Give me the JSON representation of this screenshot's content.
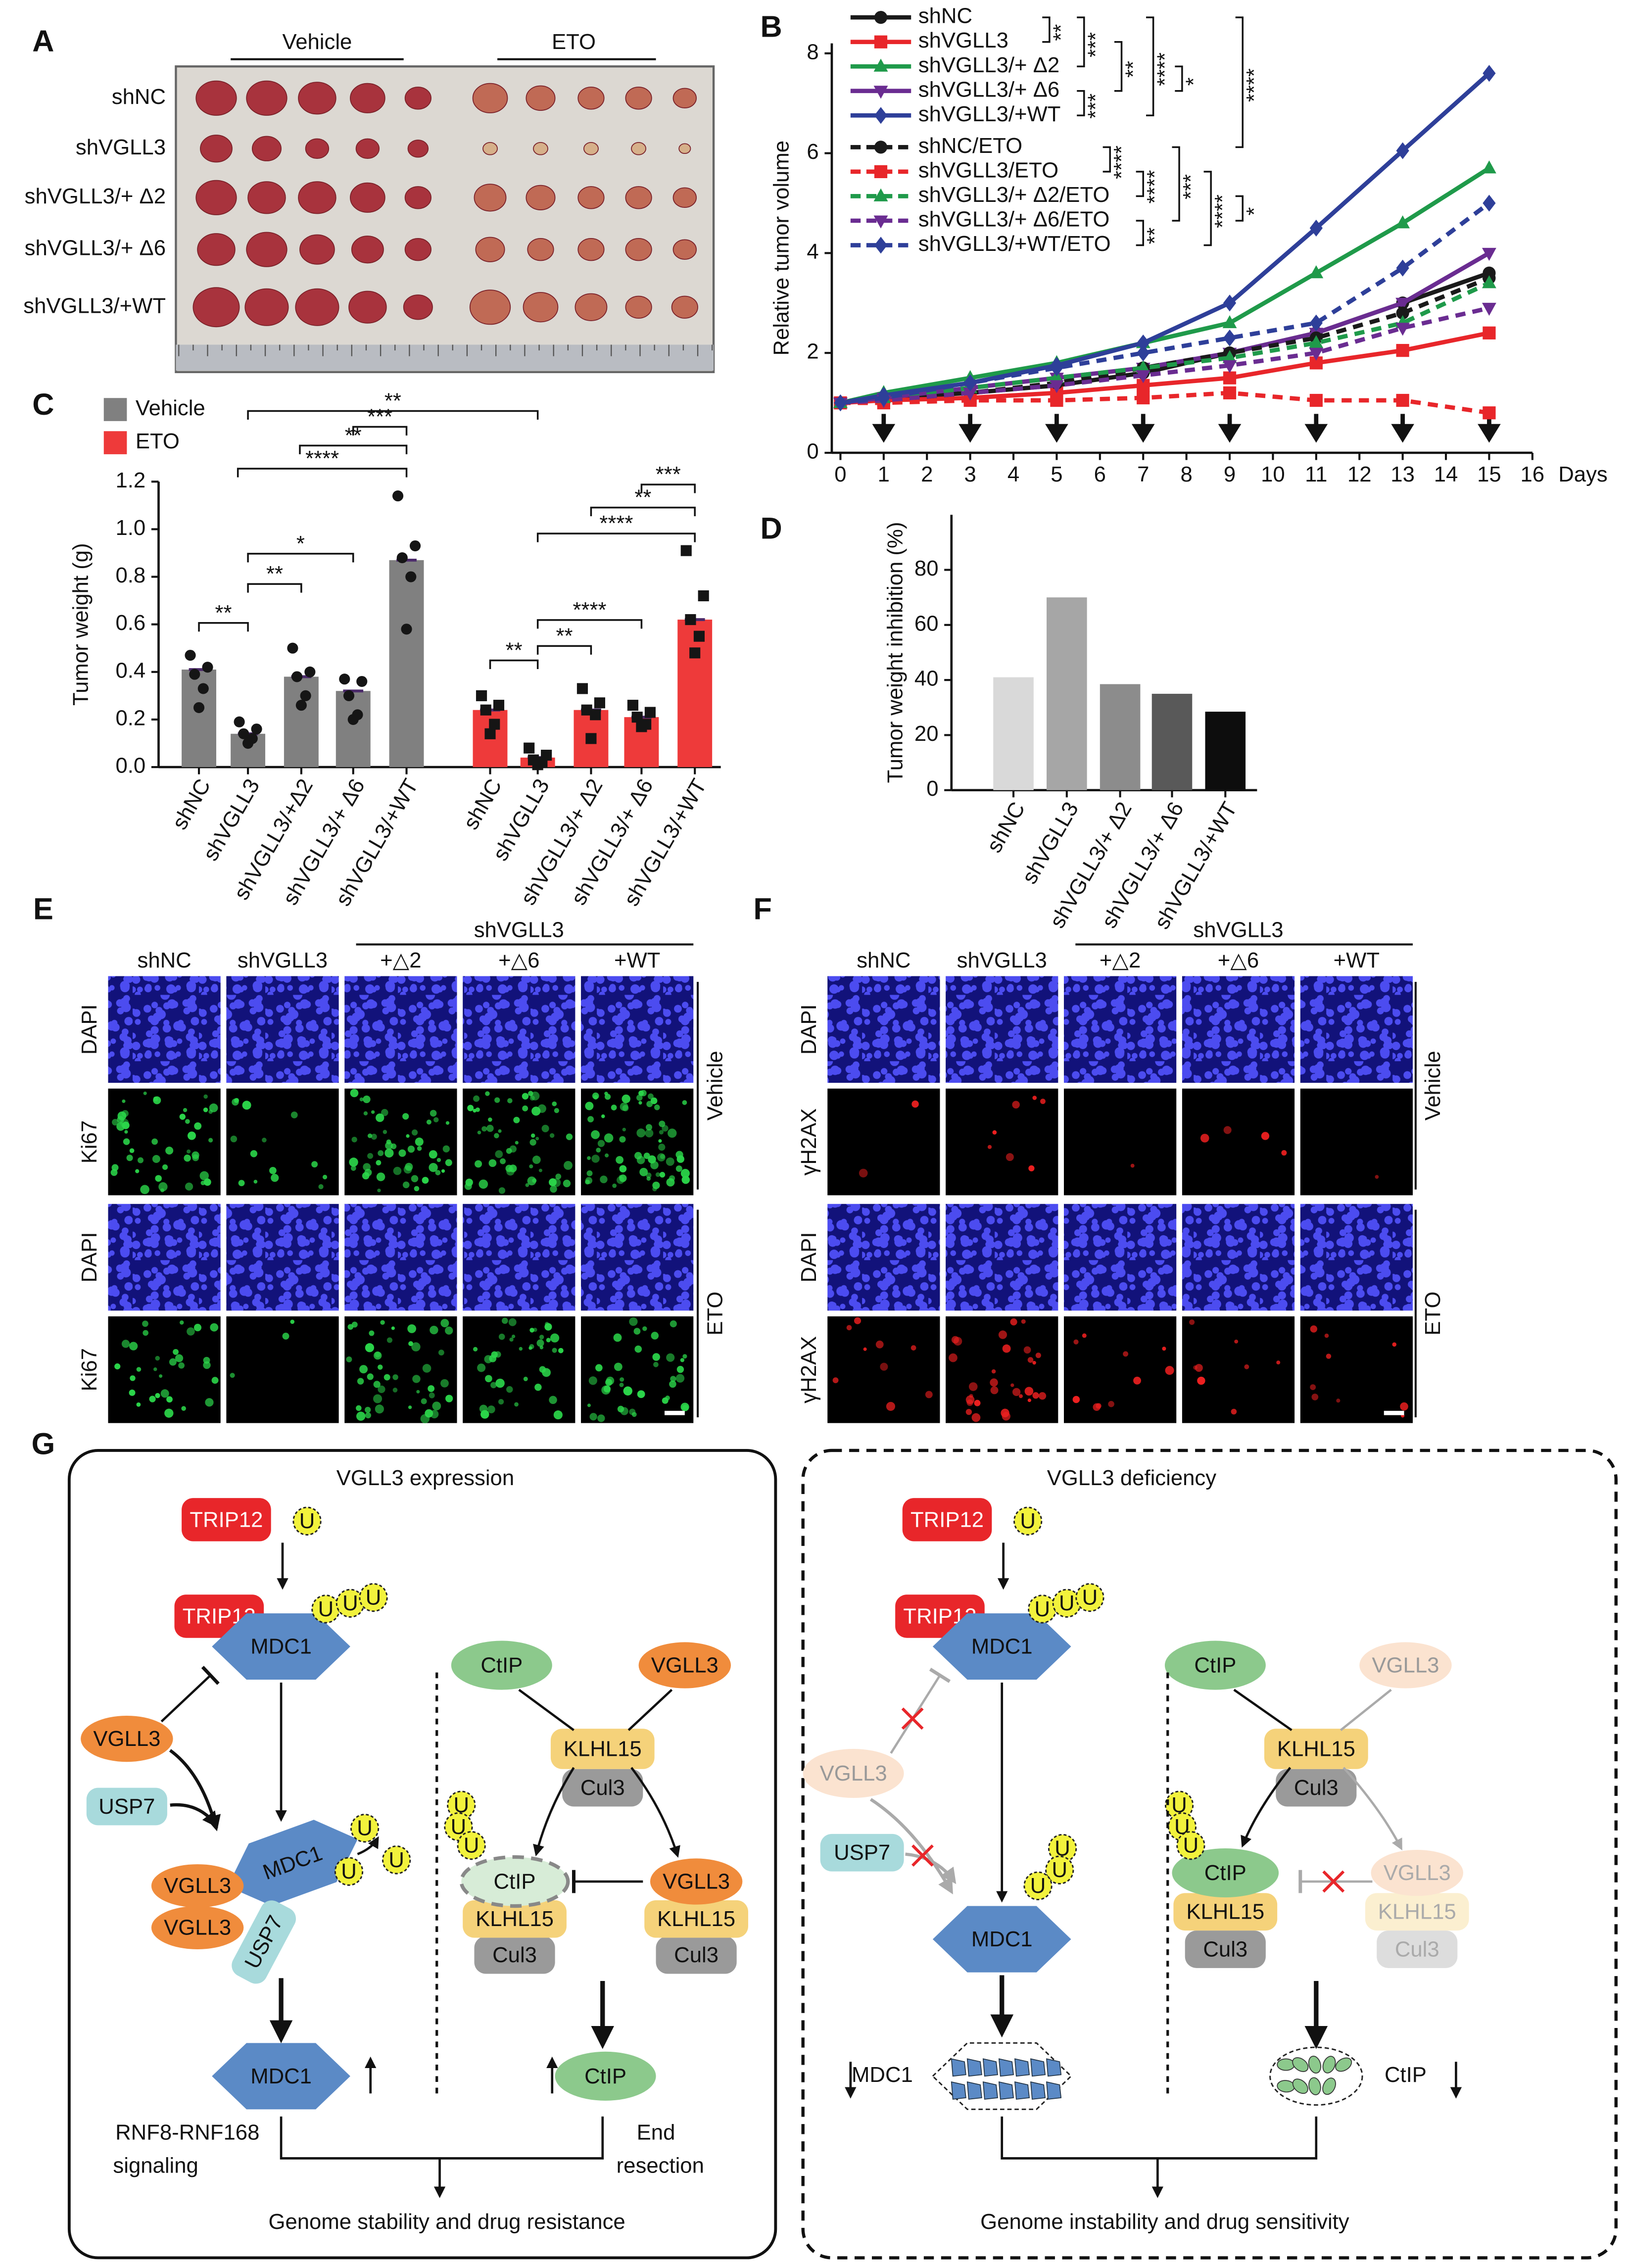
{
  "photo_A": {
    "label": "A",
    "groups": [
      "Vehicle",
      "ETO"
    ],
    "rows": [
      "shNC",
      "shVGLL3",
      "shVGLL3/+ Δ2",
      "shVGLL3/+ Δ6",
      "shVGLL3/+WT"
    ]
  },
  "chart_data": [
    {
      "label": "B",
      "type": "line",
      "y_label": "Relative tumor volume",
      "x_label": "Days",
      "x": [
        0,
        1,
        3,
        5,
        7,
        9,
        11,
        13,
        15
      ],
      "xlim": [
        0,
        16
      ],
      "xticks": [
        0,
        1,
        2,
        3,
        4,
        5,
        6,
        7,
        8,
        9,
        10,
        11,
        12,
        13,
        14,
        15,
        16
      ],
      "ylim": [
        0,
        8.2
      ],
      "yticks": [
        0,
        2,
        4,
        6,
        8
      ],
      "treatment_days": [
        1,
        3,
        5,
        7,
        9,
        11,
        13,
        15
      ],
      "series": [
        {
          "name": "shNC",
          "color": "#1a1a1a",
          "dash": false,
          "marker": "circle",
          "values": [
            1,
            1.1,
            1.2,
            1.35,
            1.6,
            2.0,
            2.4,
            3.0,
            3.6
          ]
        },
        {
          "name": "shVGLL3",
          "color": "#e8262a",
          "dash": false,
          "marker": "square",
          "values": [
            1,
            1.05,
            1.1,
            1.2,
            1.35,
            1.5,
            1.8,
            2.05,
            2.4
          ]
        },
        {
          "name": "shVGLL3/+ Δ2",
          "color": "#1f9a4a",
          "dash": false,
          "marker": "triangle-up",
          "values": [
            1,
            1.2,
            1.5,
            1.8,
            2.2,
            2.6,
            3.6,
            4.6,
            5.7
          ]
        },
        {
          "name": "shVGLL3/+ Δ6",
          "color": "#6a2c91",
          "dash": false,
          "marker": "triangle-down",
          "values": [
            1,
            1.1,
            1.3,
            1.5,
            1.7,
            2.0,
            2.4,
            3.0,
            4.0
          ]
        },
        {
          "name": "shVGLL3/+WT",
          "color": "#2e3f99",
          "dash": false,
          "marker": "diamond",
          "values": [
            1,
            1.15,
            1.4,
            1.75,
            2.2,
            3.0,
            4.5,
            6.05,
            7.6
          ]
        },
        {
          "name": "shNC/ETO",
          "color": "#1a1a1a",
          "dash": true,
          "marker": "circle",
          "values": [
            1,
            1.05,
            1.2,
            1.4,
            1.7,
            2.0,
            2.3,
            2.8,
            3.5
          ]
        },
        {
          "name": "shVGLL3/ETO",
          "color": "#e8262a",
          "dash": true,
          "marker": "square",
          "values": [
            1,
            1.0,
            1.05,
            1.05,
            1.1,
            1.2,
            1.05,
            1.05,
            0.8
          ]
        },
        {
          "name": "shVGLL3/+ Δ2/ETO",
          "color": "#1f9a4a",
          "dash": true,
          "marker": "triangle-up",
          "values": [
            1,
            1.1,
            1.3,
            1.5,
            1.7,
            1.9,
            2.2,
            2.6,
            3.4
          ]
        },
        {
          "name": "shVGLL3/+ Δ6/ETO",
          "color": "#6a2c91",
          "dash": true,
          "marker": "triangle-down",
          "values": [
            1,
            1.05,
            1.2,
            1.35,
            1.55,
            1.75,
            2.0,
            2.5,
            2.9
          ]
        },
        {
          "name": "shVGLL3/+WT/ETO",
          "color": "#2e3f99",
          "dash": true,
          "marker": "diamond",
          "values": [
            1,
            1.1,
            1.4,
            1.7,
            2.0,
            2.3,
            2.6,
            3.7,
            5.0
          ]
        }
      ],
      "annotations": [
        "**",
        "***",
        "**",
        "****",
        "*",
        "***",
        "****",
        "****",
        "****",
        "***",
        "****",
        "*",
        "**"
      ]
    },
    {
      "label": "C",
      "type": "bar",
      "y_label": "Tumor weight (g)",
      "categories": [
        "shNC",
        "shVGLL3",
        "shVGLL3/+Δ2",
        "shVGLL3/+ Δ6",
        "shVGLL3/+WT",
        "shNC",
        "shVGLL3",
        "shVGLL3/+ Δ2",
        "shVGLL3/+ Δ6",
        "shVGLL3/+WT"
      ],
      "ylim": [
        0,
        1.2
      ],
      "yticks": [
        {
          "value": 0,
          "label": "0.0"
        },
        0.2,
        0.4,
        0.6,
        0.8,
        {
          "value": 1,
          "label": "1.0"
        },
        1.2
      ],
      "series": [
        {
          "name": "Vehicle",
          "color": "#808080",
          "marker": "circle",
          "values": [
            0.41,
            0.14,
            0.38,
            0.32,
            0.87,
            null,
            null,
            null,
            null,
            null
          ],
          "points": [
            [
              0.47,
              0.42,
              0.39,
              0.33,
              0.25
            ],
            [
              0.19,
              0.16,
              0.14,
              0.12,
              0.1
            ],
            [
              0.5,
              0.4,
              0.38,
              0.3,
              0.26
            ],
            [
              0.37,
              0.36,
              0.3,
              0.22,
              0.2
            ],
            [
              1.14,
              0.93,
              0.88,
              0.8,
              0.58
            ],
            null,
            null,
            null,
            null,
            null
          ]
        },
        {
          "name": "ETO",
          "color": "#ee3a3a",
          "marker": "square",
          "values": [
            null,
            null,
            null,
            null,
            null,
            0.24,
            0.04,
            0.24,
            0.21,
            0.62
          ],
          "points": [
            null,
            null,
            null,
            null,
            null,
            [
              0.3,
              0.26,
              0.24,
              0.18,
              0.14
            ],
            [
              0.08,
              0.05,
              0.03,
              0.02,
              0.01
            ],
            [
              0.33,
              0.27,
              0.24,
              0.22,
              0.12
            ],
            [
              0.26,
              0.23,
              0.21,
              0.18,
              0.17
            ],
            [
              0.91,
              0.72,
              0.62,
              0.55,
              0.48
            ]
          ]
        }
      ],
      "annotations": [
        "**",
        "**",
        "*",
        "****",
        "**",
        "***",
        "**",
        "**",
        "**",
        "****",
        "****",
        "**",
        "***"
      ]
    },
    {
      "label": "D",
      "type": "bar",
      "y_label": "Tumor weight inhibition (%)",
      "categories": [
        "shNC",
        "shVGLL3",
        "shVGLL3/+ Δ2",
        "shVGLL3/+ Δ6",
        "shVGLL3/+WT"
      ],
      "values": [
        41,
        70,
        38.5,
        35,
        28.5
      ],
      "colors": [
        "#d9d9d9",
        "#a6a6a6",
        "#8c8c8c",
        "#595959",
        "#0d0d0d"
      ],
      "ylim": [
        0,
        100
      ],
      "yticks": [
        0,
        20,
        40,
        60,
        80
      ]
    }
  ],
  "images_E": {
    "label": "E",
    "group": "shVGLL3",
    "columns": [
      "shNC",
      "shVGLL3",
      "+△2",
      "+△6",
      "+WT"
    ],
    "rows": [
      "DAPI",
      "Ki67",
      "DAPI",
      "Ki67"
    ],
    "conditions": [
      "Vehicle",
      "ETO"
    ]
  },
  "images_F": {
    "label": "F",
    "group": "shVGLL3",
    "columns": [
      "shNC",
      "shVGLL3",
      "+△2",
      "+△6",
      "+WT"
    ],
    "rows": [
      "DAPI",
      "γH2AX",
      "DAPI",
      "γH2AX"
    ],
    "conditions": [
      "Vehicle",
      "ETO"
    ]
  },
  "diagram_G": {
    "label": "G",
    "left": {
      "title": "VGLL3 expression",
      "labels": [
        "TRIP12",
        "TRIP12",
        "MDC1",
        "VGLL3",
        "USP7",
        "MDC1",
        "VGLL3",
        "VGLL3",
        "USP7",
        "MDC1",
        "CtIP",
        "VGLL3",
        "KLHL15",
        "Cul3",
        "CtIP",
        "KLHL15",
        "Cul3",
        "VGLL3",
        "KLHL15",
        "Cul3",
        "CtIP",
        "RNF8-RNF168",
        "signaling",
        "End",
        "resection",
        "Genome stability and drug resistance"
      ],
      "ubiquitin": [
        "U",
        "U",
        "U",
        "U",
        "U",
        "U",
        "U",
        "U",
        "U",
        "U"
      ]
    },
    "right": {
      "title": "VGLL3 deficiency",
      "labels": [
        "TRIP12",
        "TRIP12",
        "MDC1",
        "VGLL3",
        "USP7",
        "MDC1",
        "MDC1",
        "CtIP",
        "VGLL3",
        "KLHL15",
        "Cul3",
        "CtIP",
        "KLHL15",
        "Cul3",
        "VGLL3",
        "KLHL15",
        "Cul3",
        "CtIP",
        "Genome instability and drug sensitivity"
      ],
      "ubiquitin": [
        "U",
        "U",
        "U",
        "U",
        "U",
        "U",
        "U",
        "U",
        "U",
        "U"
      ]
    }
  }
}
